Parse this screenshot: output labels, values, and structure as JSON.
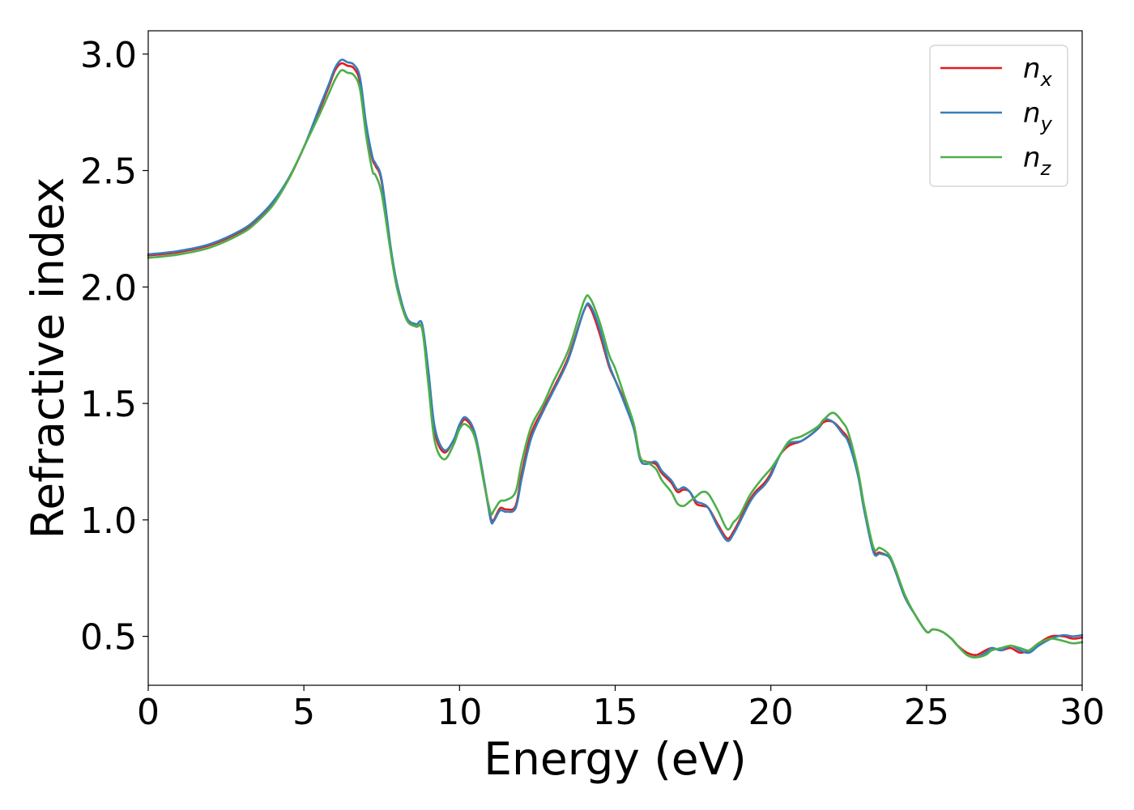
{
  "chart_data": {
    "type": "line",
    "title": "",
    "xlabel": "Energy (eV)",
    "ylabel": "Refractive index",
    "xlim": [
      0,
      30
    ],
    "ylim": [
      0.29,
      3.1
    ],
    "xticks": [
      0,
      5,
      10,
      15,
      20,
      25,
      30
    ],
    "yticks": [
      0.5,
      1.0,
      1.5,
      2.0,
      2.5,
      3.0
    ],
    "xtick_labels": [
      "0",
      "5",
      "10",
      "15",
      "20",
      "25",
      "30"
    ],
    "ytick_labels": [
      "0.5",
      "1.0",
      "1.5",
      "2.0",
      "2.5",
      "3.0"
    ],
    "grid": false,
    "legend_position": "top-right",
    "series": [
      {
        "name": "n",
        "subscript": "x",
        "color": "#e41a1c",
        "x": [
          0,
          1,
          2,
          3,
          3.5,
          4,
          4.5,
          5,
          5.5,
          5.8,
          6,
          6.2,
          6.4,
          6.6,
          6.8,
          7,
          7.2,
          7.3,
          7.5,
          7.8,
          8,
          8.3,
          8.6,
          8.8,
          9,
          9.2,
          9.5,
          9.8,
          10,
          10.2,
          10.5,
          10.8,
          11,
          11.1,
          11.3,
          11.5,
          11.8,
          12,
          12.3,
          12.7,
          13,
          13.5,
          14,
          14.2,
          14.5,
          14.8,
          15,
          15.3,
          15.6,
          15.8,
          16,
          16.3,
          16.5,
          16.8,
          17,
          17.2,
          17.4,
          17.6,
          17.8,
          18,
          18.3,
          18.6,
          18.8,
          19,
          19.3,
          19.5,
          19.8,
          20,
          20.3,
          20.6,
          21,
          21.5,
          21.7,
          22,
          22.3,
          22.5,
          22.8,
          23,
          23.3,
          23.5,
          23.8,
          24,
          24.3,
          24.6,
          25,
          25.2,
          25.5,
          25.8,
          26,
          26.3,
          26.6,
          26.9,
          27.1,
          27.4,
          27.7,
          28,
          28.3,
          28.6,
          29,
          29.4,
          29.7,
          30
        ],
        "y": [
          2.135,
          2.15,
          2.18,
          2.24,
          2.29,
          2.36,
          2.46,
          2.6,
          2.76,
          2.86,
          2.93,
          2.96,
          2.95,
          2.94,
          2.88,
          2.68,
          2.55,
          2.52,
          2.45,
          2.15,
          2.0,
          1.86,
          1.83,
          1.82,
          1.62,
          1.38,
          1.29,
          1.34,
          1.4,
          1.43,
          1.36,
          1.15,
          1.01,
          1.0,
          1.05,
          1.045,
          1.06,
          1.2,
          1.37,
          1.48,
          1.56,
          1.7,
          1.9,
          1.91,
          1.8,
          1.66,
          1.6,
          1.51,
          1.4,
          1.27,
          1.25,
          1.24,
          1.2,
          1.16,
          1.12,
          1.13,
          1.12,
          1.07,
          1.06,
          1.05,
          0.98,
          0.92,
          0.95,
          1.0,
          1.08,
          1.12,
          1.16,
          1.2,
          1.28,
          1.32,
          1.34,
          1.39,
          1.42,
          1.42,
          1.38,
          1.34,
          1.2,
          1.05,
          0.87,
          0.86,
          0.84,
          0.78,
          0.67,
          0.6,
          0.52,
          0.53,
          0.52,
          0.49,
          0.46,
          0.43,
          0.42,
          0.44,
          0.45,
          0.44,
          0.45,
          0.43,
          0.44,
          0.47,
          0.5,
          0.5,
          0.49,
          0.495
        ]
      },
      {
        "name": "n",
        "subscript": "y",
        "color": "#377eb8",
        "x": [
          0,
          1,
          2,
          3,
          3.5,
          4,
          4.5,
          5,
          5.5,
          5.8,
          6,
          6.2,
          6.4,
          6.6,
          6.8,
          7,
          7.2,
          7.3,
          7.5,
          7.8,
          8,
          8.3,
          8.6,
          8.8,
          9,
          9.2,
          9.5,
          9.8,
          10,
          10.2,
          10.5,
          10.8,
          11,
          11.1,
          11.3,
          11.5,
          11.8,
          12,
          12.3,
          12.7,
          13,
          13.5,
          14,
          14.2,
          14.5,
          14.8,
          15,
          15.3,
          15.6,
          15.8,
          16,
          16.3,
          16.5,
          16.8,
          17,
          17.2,
          17.4,
          17.6,
          17.8,
          18,
          18.3,
          18.6,
          18.8,
          19,
          19.3,
          19.5,
          19.8,
          20,
          20.3,
          20.6,
          21,
          21.5,
          21.7,
          22,
          22.3,
          22.5,
          22.8,
          23,
          23.3,
          23.5,
          23.8,
          24,
          24.3,
          24.6,
          25,
          25.2,
          25.5,
          25.8,
          26,
          26.3,
          26.6,
          26.9,
          27.1,
          27.4,
          27.7,
          28,
          28.3,
          28.6,
          29,
          29.4,
          29.7,
          30
        ],
        "y": [
          2.14,
          2.155,
          2.185,
          2.245,
          2.295,
          2.365,
          2.465,
          2.6,
          2.77,
          2.87,
          2.94,
          2.975,
          2.965,
          2.955,
          2.9,
          2.7,
          2.56,
          2.53,
          2.46,
          2.16,
          2.01,
          1.87,
          1.84,
          1.84,
          1.64,
          1.4,
          1.3,
          1.34,
          1.41,
          1.44,
          1.37,
          1.16,
          1.0,
          0.995,
          1.04,
          1.035,
          1.05,
          1.18,
          1.35,
          1.47,
          1.55,
          1.69,
          1.9,
          1.92,
          1.82,
          1.67,
          1.6,
          1.5,
          1.39,
          1.26,
          1.24,
          1.25,
          1.21,
          1.17,
          1.13,
          1.14,
          1.12,
          1.08,
          1.07,
          1.05,
          0.97,
          0.91,
          0.94,
          0.99,
          1.07,
          1.11,
          1.15,
          1.19,
          1.28,
          1.33,
          1.34,
          1.39,
          1.43,
          1.42,
          1.37,
          1.33,
          1.19,
          1.04,
          0.86,
          0.855,
          0.84,
          0.78,
          0.67,
          0.6,
          0.52,
          0.53,
          0.52,
          0.49,
          0.46,
          0.42,
          0.41,
          0.43,
          0.45,
          0.44,
          0.46,
          0.44,
          0.43,
          0.46,
          0.49,
          0.505,
          0.5,
          0.505
        ]
      },
      {
        "name": "n",
        "subscript": "z",
        "color": "#4daf4a",
        "x": [
          0,
          1,
          2,
          3,
          3.5,
          4,
          4.5,
          5,
          5.5,
          5.8,
          6,
          6.2,
          6.4,
          6.6,
          6.8,
          7,
          7.2,
          7.3,
          7.5,
          7.8,
          8,
          8.3,
          8.6,
          8.8,
          9,
          9.2,
          9.5,
          9.8,
          10,
          10.2,
          10.5,
          10.8,
          11,
          11.1,
          11.3,
          11.5,
          11.8,
          12,
          12.3,
          12.7,
          13,
          13.5,
          14,
          14.2,
          14.5,
          14.8,
          15,
          15.3,
          15.6,
          15.8,
          16,
          16.3,
          16.5,
          16.8,
          17,
          17.2,
          17.4,
          17.6,
          17.8,
          18,
          18.3,
          18.6,
          18.8,
          19,
          19.3,
          19.5,
          19.8,
          20,
          20.3,
          20.6,
          21,
          21.5,
          21.7,
          22,
          22.3,
          22.5,
          22.8,
          23,
          23.3,
          23.5,
          23.8,
          24,
          24.3,
          24.6,
          25,
          25.2,
          25.5,
          25.8,
          26,
          26.3,
          26.6,
          26.9,
          27.1,
          27.4,
          27.7,
          28,
          28.3,
          28.6,
          29,
          29.4,
          29.7,
          30
        ],
        "y": [
          2.125,
          2.14,
          2.17,
          2.23,
          2.28,
          2.35,
          2.46,
          2.6,
          2.74,
          2.83,
          2.89,
          2.93,
          2.92,
          2.91,
          2.85,
          2.65,
          2.5,
          2.48,
          2.4,
          2.14,
          1.99,
          1.86,
          1.83,
          1.82,
          1.58,
          1.34,
          1.26,
          1.32,
          1.39,
          1.41,
          1.35,
          1.15,
          1.03,
          1.04,
          1.08,
          1.085,
          1.12,
          1.25,
          1.4,
          1.5,
          1.59,
          1.73,
          1.94,
          1.95,
          1.85,
          1.71,
          1.65,
          1.53,
          1.41,
          1.27,
          1.25,
          1.22,
          1.17,
          1.12,
          1.07,
          1.06,
          1.08,
          1.1,
          1.12,
          1.11,
          1.04,
          0.96,
          0.99,
          1.02,
          1.1,
          1.14,
          1.19,
          1.22,
          1.28,
          1.34,
          1.36,
          1.4,
          1.43,
          1.46,
          1.42,
          1.37,
          1.21,
          1.06,
          0.88,
          0.88,
          0.85,
          0.79,
          0.68,
          0.6,
          0.52,
          0.53,
          0.52,
          0.49,
          0.46,
          0.42,
          0.41,
          0.42,
          0.44,
          0.45,
          0.46,
          0.45,
          0.44,
          0.47,
          0.49,
          0.48,
          0.47,
          0.475
        ]
      }
    ]
  }
}
